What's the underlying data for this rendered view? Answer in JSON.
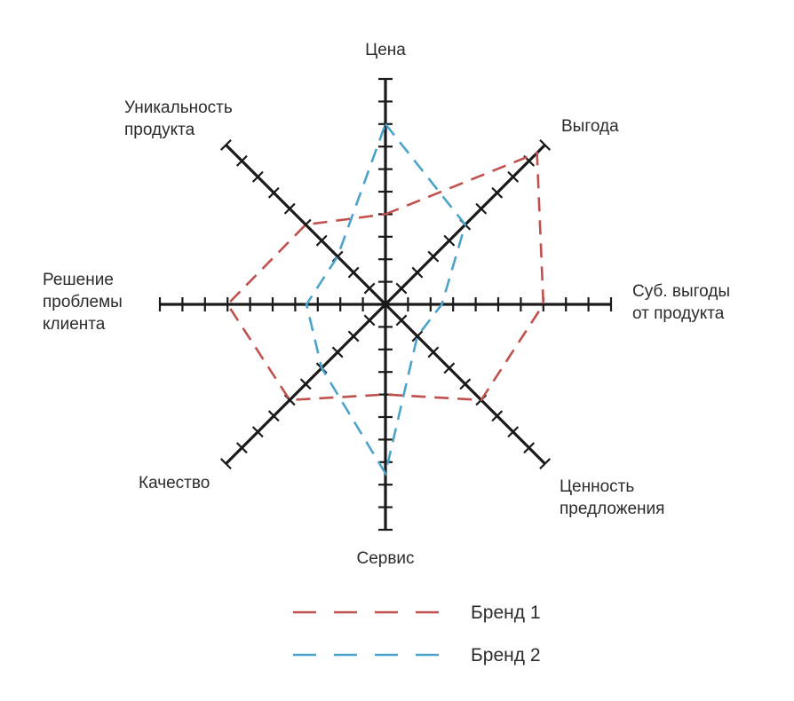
{
  "chart_data": {
    "type": "radar",
    "scale_max": 10,
    "ticks_per_axis": 10,
    "grid": false,
    "legend_position": "bottom-center",
    "colors": {
      "axis": "#1a1a1a",
      "brand1": "#c0504d",
      "brand2": "#4ba3cc"
    },
    "axes": [
      {
        "id": "price",
        "lines": [
          "Цена"
        ]
      },
      {
        "id": "benefit",
        "lines": [
          "Выгода"
        ]
      },
      {
        "id": "subj-benefits",
        "lines": [
          "Суб. выгоды",
          "от продукта"
        ]
      },
      {
        "id": "offer-value",
        "lines": [
          "Ценность",
          "предложения"
        ]
      },
      {
        "id": "service",
        "lines": [
          "Сервис"
        ]
      },
      {
        "id": "quality",
        "lines": [
          "Качество"
        ]
      },
      {
        "id": "problem-solving",
        "lines": [
          "Решение",
          "проблемы",
          "клиента"
        ]
      },
      {
        "id": "uniqueness",
        "lines": [
          "Уникальность",
          "продукта"
        ]
      }
    ],
    "series": [
      {
        "name": "Бренд 1",
        "color": "#c0504d",
        "values": [
          4,
          9.5,
          7,
          6,
          4,
          6,
          7,
          5
        ]
      },
      {
        "name": "Бренд 2",
        "color": "#4ba3cc",
        "values": [
          8,
          5,
          2.5,
          2,
          7.5,
          4,
          3.5,
          3
        ]
      }
    ]
  }
}
